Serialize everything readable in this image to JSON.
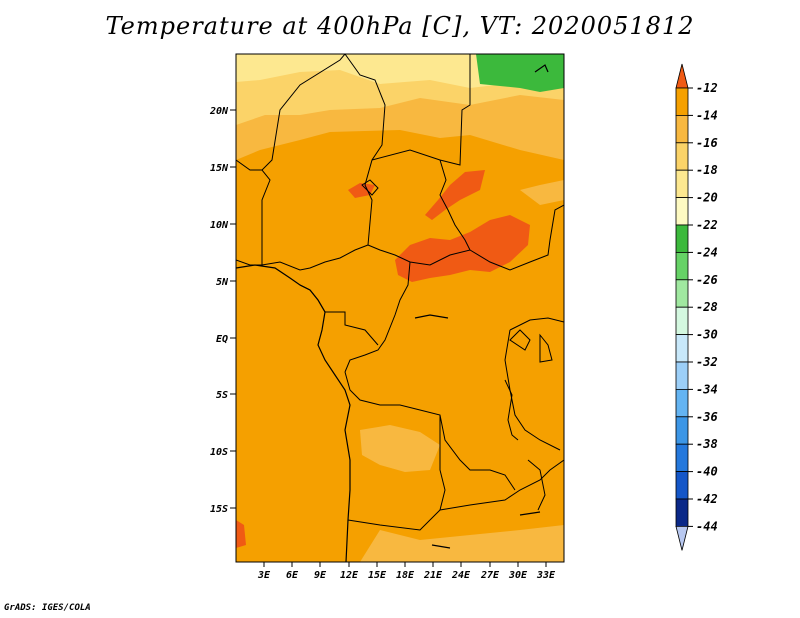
{
  "title": "Temperature at 400hPa [C], VT: 2020051812",
  "credit": "GrADS: IGES/COLA",
  "lat_labels": [
    "20N",
    "15N",
    "10N",
    "5N",
    "EQ",
    "5S",
    "10S",
    "15S"
  ],
  "lon_labels": [
    "3E",
    "6E",
    "9E",
    "12E",
    "15E",
    "18E",
    "21E",
    "24E",
    "27E",
    "30E",
    "33E"
  ],
  "colorbar": {
    "labels": [
      "-12",
      "-14",
      "-16",
      "-18",
      "-20",
      "-22",
      "-24",
      "-26",
      "-28",
      "-30",
      "-32",
      "-34",
      "-36",
      "-38",
      "-40",
      "-42",
      "-44"
    ],
    "colors": [
      "#f05a14",
      "#f5a000",
      "#f8b840",
      "#fbd368",
      "#fde890",
      "#fefac2",
      "#3cb93c",
      "#66d266",
      "#a0e8a0",
      "#d4f8e0",
      "#c8e8fa",
      "#9ccff8",
      "#64b4f2",
      "#3c96e6",
      "#2478dc",
      "#1456c8",
      "#0a2888",
      "#b8c8f0"
    ]
  },
  "map_colors": {
    "t_neg14": "#f5a000",
    "t_neg16": "#f8b840",
    "t_neg18": "#fbd368",
    "t_neg20": "#fde890",
    "t_neg12": "#f05a14",
    "t_neg24": "#3cb93c"
  }
}
